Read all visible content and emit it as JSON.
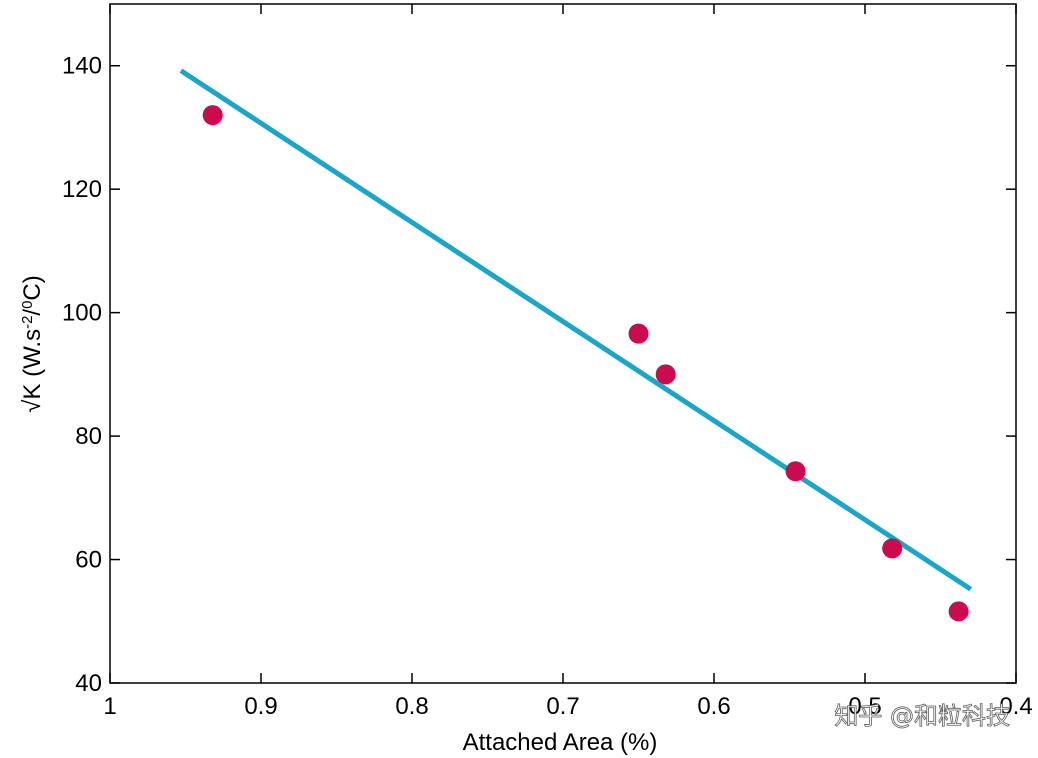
{
  "chart_data": {
    "type": "scatter",
    "title": "",
    "xlabel": "Attached Area (%)",
    "ylabel_prefix": "√K (W.s",
    "ylabel_sup1": "-2",
    "ylabel_mid": "/",
    "ylabel_sup2": "0",
    "ylabel_suffix": "C)",
    "xlim": [
      1.0,
      0.4
    ],
    "x_reversed": true,
    "ylim": [
      40,
      150
    ],
    "xticks": [
      1,
      0.9,
      0.8,
      0.7,
      0.6,
      0.5,
      0.4
    ],
    "xtick_labels": [
      "1",
      "0.9",
      "0.8",
      "0.7",
      "0.6",
      "0.5",
      "0.4"
    ],
    "yticks": [
      40,
      60,
      80,
      100,
      120,
      140
    ],
    "ytick_labels": [
      "40",
      "60",
      "80",
      "100",
      "120",
      "140"
    ],
    "grid": false,
    "series": [
      {
        "kind": "points",
        "color": "#cc0a4f",
        "x": [
          0.932,
          0.65,
          0.632,
          0.546,
          0.482,
          0.438
        ],
        "y": [
          132,
          96.6,
          90,
          74.3,
          61.8,
          51.6
        ]
      },
      {
        "kind": "fit-line",
        "color": "#1aa6c8",
        "x": [
          0.953,
          0.43
        ],
        "y": [
          139.2,
          55.2
        ]
      }
    ]
  },
  "watermark": "知乎 @和粒科技"
}
